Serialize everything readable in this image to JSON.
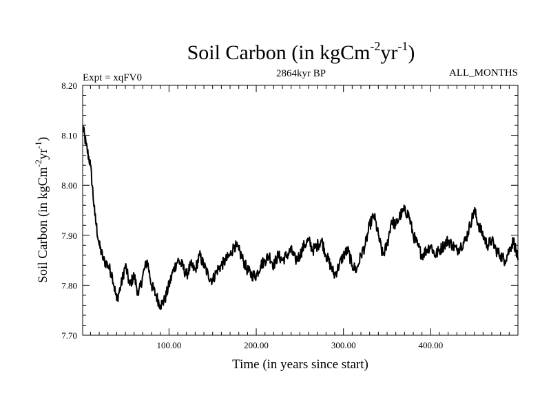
{
  "chart_data": {
    "type": "line",
    "title": {
      "prefix": "Soil Carbon (in kgCm",
      "sup1": "-2",
      "middle": "yr",
      "sup2": "-1",
      "suffix": ")"
    },
    "expt_label": "Expt = xqFV0",
    "period_label": "2864kyr BP",
    "months_label": "ALL_MONTHS",
    "xlabel": "Time (in years since start)",
    "ylabel": {
      "prefix": "Soil Carbon (in kgCm",
      "sup1": "-2",
      "middle": "yr",
      "sup2": "-1",
      "suffix": ")"
    },
    "xlim": [
      1,
      500
    ],
    "ylim": [
      7.7,
      8.2
    ],
    "x_ticks": [
      {
        "value": 100,
        "label": "100.00"
      },
      {
        "value": 200,
        "label": "200.00"
      },
      {
        "value": 300,
        "label": "300.00"
      },
      {
        "value": 400,
        "label": "400.00"
      }
    ],
    "y_ticks": [
      {
        "value": 7.7,
        "label": "7.70"
      },
      {
        "value": 7.8,
        "label": "7.80"
      },
      {
        "value": 7.9,
        "label": "7.90"
      },
      {
        "value": 8.0,
        "label": "8.00"
      },
      {
        "value": 8.1,
        "label": "8.10"
      },
      {
        "value": 8.2,
        "label": "8.20"
      }
    ],
    "series": [
      {
        "name": "Soil Carbon",
        "x": [
          1,
          5,
          10,
          15,
          20,
          25,
          30,
          35,
          40,
          45,
          50,
          55,
          60,
          65,
          70,
          75,
          80,
          85,
          90,
          95,
          100,
          105,
          110,
          115,
          120,
          125,
          130,
          135,
          140,
          145,
          150,
          155,
          160,
          165,
          170,
          175,
          180,
          185,
          190,
          195,
          200,
          205,
          210,
          215,
          220,
          225,
          230,
          235,
          240,
          245,
          250,
          255,
          260,
          265,
          270,
          275,
          280,
          285,
          290,
          295,
          300,
          305,
          310,
          315,
          320,
          325,
          330,
          335,
          340,
          345,
          350,
          355,
          360,
          365,
          370,
          375,
          380,
          385,
          390,
          395,
          400,
          405,
          410,
          415,
          420,
          425,
          430,
          435,
          440,
          445,
          450,
          455,
          460,
          465,
          470,
          475,
          480,
          485,
          490,
          495,
          500
        ],
        "values": [
          8.12,
          8.08,
          8.04,
          7.94,
          7.88,
          7.85,
          7.84,
          7.82,
          7.77,
          7.8,
          7.84,
          7.8,
          7.82,
          7.78,
          7.82,
          7.85,
          7.8,
          7.78,
          7.76,
          7.77,
          7.8,
          7.83,
          7.85,
          7.84,
          7.82,
          7.84,
          7.83,
          7.86,
          7.84,
          7.82,
          7.81,
          7.83,
          7.84,
          7.85,
          7.86,
          7.88,
          7.87,
          7.85,
          7.83,
          7.82,
          7.82,
          7.84,
          7.85,
          7.86,
          7.84,
          7.86,
          7.85,
          7.86,
          7.87,
          7.85,
          7.86,
          7.88,
          7.89,
          7.87,
          7.88,
          7.89,
          7.86,
          7.84,
          7.82,
          7.84,
          7.86,
          7.87,
          7.84,
          7.83,
          7.86,
          7.88,
          7.92,
          7.94,
          7.9,
          7.86,
          7.88,
          7.93,
          7.92,
          7.94,
          7.95,
          7.94,
          7.9,
          7.88,
          7.86,
          7.87,
          7.88,
          7.86,
          7.87,
          7.88,
          7.89,
          7.88,
          7.87,
          7.88,
          7.89,
          7.92,
          7.95,
          7.92,
          7.9,
          7.88,
          7.89,
          7.87,
          7.86,
          7.85,
          7.87,
          7.89,
          7.85
        ]
      }
    ]
  }
}
